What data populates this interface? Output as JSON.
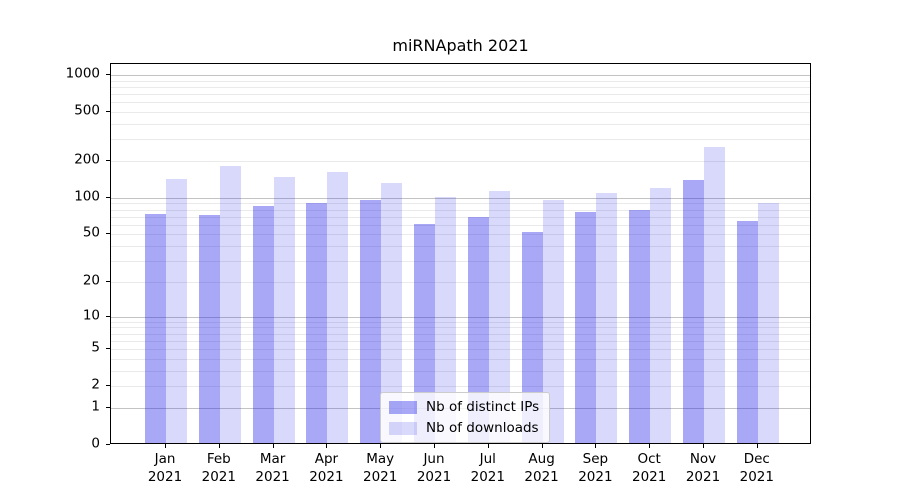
{
  "chart_data": {
    "type": "bar",
    "title": "miRNApath 2021",
    "categories": [
      "Jan",
      "Feb",
      "Mar",
      "Apr",
      "May",
      "Jun",
      "Jul",
      "Aug",
      "Sep",
      "Oct",
      "Nov",
      "Dec"
    ],
    "year_label": "2021",
    "series": [
      {
        "name": "Nb of distinct IPs",
        "values": [
          71,
          70,
          82,
          88,
          92,
          59,
          67,
          50,
          74,
          77,
          135,
          62
        ]
      },
      {
        "name": "Nb of downloads",
        "values": [
          137,
          176,
          142,
          158,
          128,
          97,
          109,
          92,
          105,
          117,
          250,
          87
        ]
      }
    ],
    "y_ticks": [
      0,
      1,
      2,
      5,
      10,
      20,
      50,
      100,
      200,
      500,
      1000
    ],
    "yscale": "symlog",
    "ylim": [
      0,
      1228
    ],
    "xlabel": "",
    "ylabel": "",
    "grid": true,
    "legend_position": "lower-center"
  },
  "colors": {
    "bar_strong": "rgba(31,31,232,0.39)",
    "bar_light": "rgba(31,31,232,0.17)",
    "grid_major": "#c3c3c3",
    "grid_minor": "#eaeaea",
    "axis": "#000000",
    "text": "#000000",
    "legend_border": "#cccccc"
  }
}
